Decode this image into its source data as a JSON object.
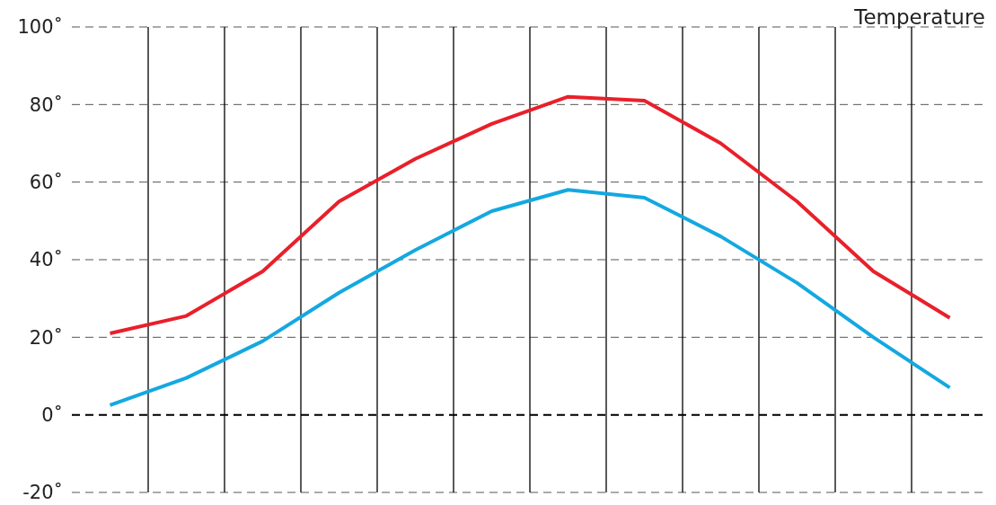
{
  "chart_data": {
    "type": "line",
    "ylabel": "Temperature",
    "categories": [
      null,
      null,
      null,
      null,
      null,
      null,
      null,
      null,
      null,
      null,
      null,
      null
    ],
    "series": [
      {
        "color": "#e8202a",
        "values": [
          21,
          25.5,
          37,
          55,
          66,
          75,
          82,
          81,
          70,
          55,
          37,
          25
        ]
      },
      {
        "color": "#14a8e0",
        "values": [
          2.5,
          9.5,
          19,
          31.5,
          42.5,
          52.5,
          58,
          56,
          46,
          34,
          20,
          7
        ]
      }
    ],
    "ylim": [
      -20,
      100
    ],
    "yticks": [
      {
        "value": -20,
        "label": "-20˚"
      },
      {
        "value": 0,
        "label": "0˚"
      },
      {
        "value": 20,
        "label": "20˚"
      },
      {
        "value": 40,
        "label": "40˚"
      },
      {
        "value": 60,
        "label": "60˚"
      },
      {
        "value": 80,
        "label": "80˚"
      },
      {
        "value": 100,
        "label": "100˚"
      }
    ],
    "grid": true,
    "line_style": "solid",
    "marker": "none",
    "ref_lines": [
      {
        "axis": "y",
        "value": 0,
        "color": "#000000",
        "line_style": "dashed"
      }
    ]
  }
}
